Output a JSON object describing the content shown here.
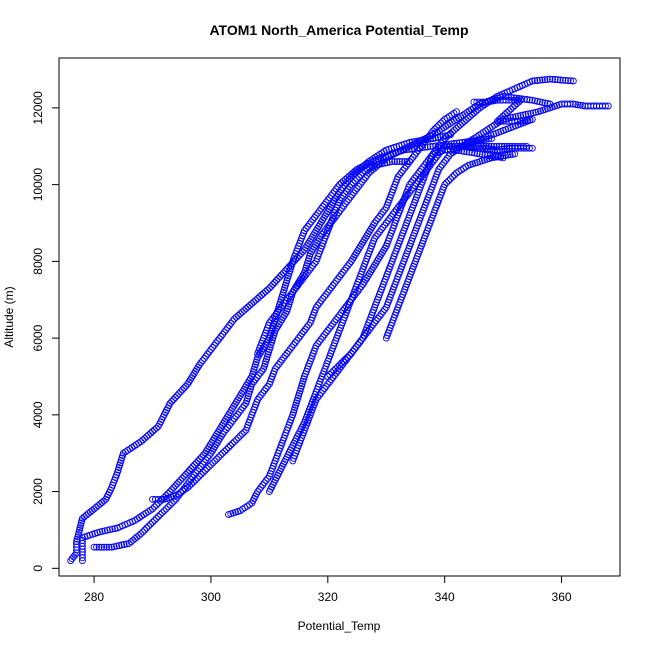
{
  "chart_data": {
    "type": "scatter",
    "title": "ATOM1 North_America Potential_Temp",
    "xlabel": "Potential_Temp",
    "ylabel": "Altitude (m)",
    "xlim": [
      274,
      370
    ],
    "ylim": [
      -200,
      13300
    ],
    "xticks": [
      280,
      300,
      320,
      340,
      360
    ],
    "yticks": [
      0,
      2000,
      4000,
      6000,
      8000,
      10000,
      12000
    ],
    "marker": "open-circle",
    "color": "#0000ff",
    "grid": false,
    "series": [
      {
        "points": [
          [
            276,
            200
          ],
          [
            277,
            400
          ],
          [
            277,
            700
          ],
          [
            277.5,
            1000
          ],
          [
            278,
            1300
          ],
          [
            280,
            1550
          ],
          [
            282,
            1800
          ],
          [
            283,
            2100
          ],
          [
            284,
            2500
          ],
          [
            285,
            3000
          ],
          [
            288,
            3300
          ],
          [
            291,
            3700
          ],
          [
            293,
            4300
          ],
          [
            296,
            4800
          ],
          [
            298,
            5300
          ],
          [
            300,
            5700
          ],
          [
            302,
            6100
          ],
          [
            304,
            6500
          ],
          [
            307,
            6900
          ],
          [
            310,
            7300
          ],
          [
            313,
            7800
          ],
          [
            316,
            8300
          ],
          [
            318,
            8800
          ],
          [
            320,
            9300
          ],
          [
            322,
            9800
          ],
          [
            324,
            10200
          ],
          [
            327,
            10600
          ],
          [
            330,
            10900
          ],
          [
            334,
            11100
          ],
          [
            338,
            11200
          ],
          [
            341,
            11300
          ]
        ]
      },
      {
        "points": [
          [
            278,
            200
          ],
          [
            278,
            500
          ],
          [
            278,
            800
          ],
          [
            281,
            950
          ],
          [
            284,
            1050
          ],
          [
            287,
            1250
          ],
          [
            290,
            1550
          ],
          [
            293,
            2000
          ],
          [
            296,
            2500
          ],
          [
            299,
            3000
          ],
          [
            301,
            3500
          ],
          [
            303,
            4000
          ],
          [
            305,
            4500
          ],
          [
            307,
            5000
          ],
          [
            308,
            5500
          ],
          [
            310,
            6000
          ],
          [
            311,
            6500
          ],
          [
            312,
            7000
          ],
          [
            313,
            7500
          ],
          [
            314,
            8000
          ],
          [
            315,
            8400
          ],
          [
            316,
            8800
          ],
          [
            318,
            9200
          ],
          [
            320,
            9600
          ],
          [
            322,
            10000
          ],
          [
            325,
            10400
          ],
          [
            329,
            10700
          ],
          [
            333,
            10900
          ],
          [
            338,
            11000
          ],
          [
            343,
            11100
          ],
          [
            348,
            11200
          ]
        ]
      },
      {
        "points": [
          [
            280,
            550
          ],
          [
            283,
            550
          ],
          [
            286,
            650
          ],
          [
            288,
            900
          ],
          [
            290,
            1200
          ],
          [
            292,
            1500
          ],
          [
            294,
            1800
          ],
          [
            296,
            2200
          ],
          [
            298,
            2600
          ],
          [
            300,
            3000
          ],
          [
            302,
            3500
          ],
          [
            304,
            3900
          ],
          [
            306,
            4300
          ],
          [
            307,
            4800
          ],
          [
            309,
            5200
          ],
          [
            310,
            5700
          ],
          [
            311,
            6200
          ],
          [
            313,
            6700
          ],
          [
            314,
            7200
          ],
          [
            316,
            7700
          ],
          [
            317,
            8200
          ],
          [
            319,
            8700
          ],
          [
            321,
            9100
          ],
          [
            323,
            9500
          ],
          [
            325,
            9900
          ],
          [
            327,
            10300
          ],
          [
            330,
            10700
          ],
          [
            334,
            11000
          ],
          [
            338,
            11300
          ],
          [
            342,
            11700
          ],
          [
            346,
            12100
          ],
          [
            350,
            12300
          ],
          [
            355,
            12200
          ],
          [
            358,
            12100
          ]
        ]
      },
      {
        "points": [
          [
            290,
            1800
          ],
          [
            292,
            1800
          ],
          [
            294,
            1900
          ],
          [
            296,
            2100
          ],
          [
            298,
            2400
          ],
          [
            300,
            2700
          ],
          [
            302,
            3000
          ],
          [
            304,
            3300
          ],
          [
            306,
            3600
          ],
          [
            307,
            4000
          ],
          [
            308,
            4400
          ],
          [
            310,
            4800
          ],
          [
            311,
            5200
          ],
          [
            313,
            5600
          ],
          [
            315,
            6000
          ],
          [
            317,
            6400
          ],
          [
            318,
            6800
          ],
          [
            320,
            7200
          ],
          [
            322,
            7600
          ],
          [
            324,
            8000
          ],
          [
            326,
            8500
          ],
          [
            328,
            9000
          ],
          [
            330,
            9400
          ],
          [
            331,
            9800
          ],
          [
            332,
            10200
          ],
          [
            334,
            10600
          ],
          [
            336,
            11000
          ],
          [
            338,
            11400
          ],
          [
            340,
            11700
          ],
          [
            342,
            11900
          ]
        ]
      },
      {
        "points": [
          [
            303,
            1400
          ],
          [
            305,
            1500
          ],
          [
            307,
            1700
          ],
          [
            308,
            2000
          ],
          [
            310,
            2400
          ],
          [
            311,
            2800
          ],
          [
            312,
            3200
          ],
          [
            313,
            3600
          ],
          [
            314,
            4000
          ],
          [
            315,
            4500
          ],
          [
            316,
            5000
          ],
          [
            317,
            5400
          ],
          [
            318,
            5800
          ],
          [
            320,
            6200
          ],
          [
            322,
            6600
          ],
          [
            324,
            7000
          ],
          [
            326,
            7400
          ],
          [
            328,
            7900
          ],
          [
            330,
            8400
          ],
          [
            331,
            8800
          ],
          [
            332,
            9200
          ],
          [
            333,
            9600
          ],
          [
            334,
            10000
          ],
          [
            336,
            10400
          ],
          [
            338,
            10800
          ],
          [
            340,
            10900
          ],
          [
            342,
            10900
          ],
          [
            346,
            10800
          ],
          [
            350,
            10700
          ]
        ]
      },
      {
        "points": [
          [
            310,
            2000
          ],
          [
            311,
            2300
          ],
          [
            312,
            2600
          ],
          [
            313,
            2900
          ],
          [
            314,
            3200
          ],
          [
            315,
            3500
          ],
          [
            316,
            3800
          ],
          [
            317,
            4200
          ],
          [
            318,
            4600
          ],
          [
            319,
            5000
          ],
          [
            320,
            5400
          ],
          [
            321,
            5800
          ],
          [
            322,
            6200
          ],
          [
            323,
            6600
          ],
          [
            324,
            7000
          ],
          [
            325,
            7400
          ],
          [
            326,
            7800
          ],
          [
            327,
            8200
          ],
          [
            328,
            8600
          ],
          [
            330,
            9000
          ],
          [
            332,
            9400
          ],
          [
            334,
            9800
          ],
          [
            336,
            10200
          ],
          [
            338,
            10600
          ],
          [
            340,
            11000
          ],
          [
            344,
            11000
          ],
          [
            348,
            11000
          ],
          [
            352,
            11000
          ],
          [
            354,
            11000
          ]
        ]
      },
      {
        "points": [
          [
            314,
            2800
          ],
          [
            315,
            3200
          ],
          [
            316,
            3600
          ],
          [
            317,
            4000
          ],
          [
            318,
            4400
          ],
          [
            320,
            4800
          ],
          [
            322,
            5200
          ],
          [
            324,
            5600
          ],
          [
            326,
            6000
          ],
          [
            327,
            6400
          ],
          [
            328,
            6800
          ],
          [
            329,
            7200
          ],
          [
            330,
            7600
          ],
          [
            331,
            8000
          ],
          [
            332,
            8400
          ],
          [
            333,
            8800
          ],
          [
            334,
            9200
          ],
          [
            335,
            9600
          ],
          [
            336,
            10000
          ],
          [
            337,
            10400
          ],
          [
            338,
            10800
          ],
          [
            340,
            11200
          ],
          [
            343,
            11600
          ],
          [
            346,
            12000
          ],
          [
            349,
            12300
          ],
          [
            352,
            12500
          ],
          [
            355,
            12700
          ],
          [
            358,
            12750
          ],
          [
            362,
            12700
          ]
        ]
      },
      {
        "points": [
          [
            320,
            5000
          ],
          [
            322,
            5300
          ],
          [
            324,
            5600
          ],
          [
            326,
            6000
          ],
          [
            328,
            6400
          ],
          [
            330,
            6800
          ],
          [
            331,
            7200
          ],
          [
            332,
            7600
          ],
          [
            333,
            8000
          ],
          [
            334,
            8400
          ],
          [
            335,
            8800
          ],
          [
            336,
            9200
          ],
          [
            337,
            9600
          ],
          [
            338,
            10000
          ],
          [
            339,
            10400
          ],
          [
            341,
            10800
          ],
          [
            344,
            11100
          ],
          [
            347,
            11400
          ],
          [
            350,
            11700
          ],
          [
            353,
            11800
          ],
          [
            356,
            11900
          ],
          [
            358,
            12000
          ],
          [
            360,
            12100
          ],
          [
            362,
            12100
          ],
          [
            364,
            12050
          ],
          [
            366,
            12050
          ],
          [
            368,
            12050
          ]
        ]
      },
      {
        "points": [
          [
            330,
            6000
          ],
          [
            331,
            6400
          ],
          [
            332,
            6800
          ],
          [
            333,
            7200
          ],
          [
            334,
            7600
          ],
          [
            335,
            8000
          ],
          [
            336,
            8400
          ],
          [
            337,
            8800
          ],
          [
            338,
            9200
          ],
          [
            339,
            9600
          ],
          [
            340,
            10000
          ],
          [
            342,
            10300
          ],
          [
            344,
            10500
          ],
          [
            346,
            10600
          ],
          [
            348,
            10700
          ],
          [
            350,
            10750
          ],
          [
            352,
            10800
          ]
        ]
      },
      {
        "points": [
          [
            308,
            5600
          ],
          [
            309,
            6000
          ],
          [
            310,
            6400
          ],
          [
            312,
            6800
          ],
          [
            314,
            7200
          ],
          [
            316,
            7600
          ],
          [
            318,
            8000
          ],
          [
            319,
            8400
          ],
          [
            320,
            8800
          ],
          [
            321,
            9200
          ],
          [
            322,
            9600
          ],
          [
            324,
            10000
          ],
          [
            326,
            10300
          ],
          [
            328,
            10500
          ],
          [
            331,
            10600
          ],
          [
            334,
            10600
          ]
        ]
      },
      {
        "points": [
          [
            345,
            12150
          ],
          [
            347,
            12150
          ],
          [
            349,
            12200
          ],
          [
            351,
            12200
          ],
          [
            353,
            12200
          ],
          [
            349,
            11650
          ],
          [
            351,
            11650
          ],
          [
            353,
            11650
          ],
          [
            355,
            11700
          ],
          [
            343,
            11000
          ],
          [
            345,
            10950
          ],
          [
            347,
            10950
          ],
          [
            349,
            10900
          ],
          [
            351,
            10950
          ],
          [
            353,
            10950
          ],
          [
            355,
            10950
          ]
        ]
      }
    ]
  }
}
